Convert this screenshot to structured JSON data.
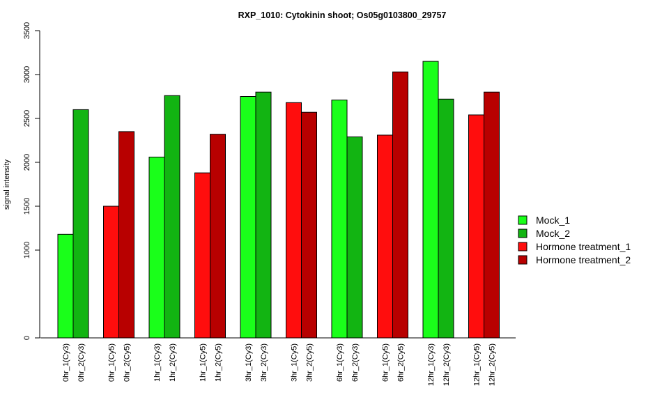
{
  "chart_data": {
    "type": "bar",
    "title": "RXP_1010: Cytokinin shoot; Os05g0103800_29757",
    "xlabel": "",
    "ylabel": "signal intensity",
    "ylim": [
      0,
      3500
    ],
    "yticks": [
      "0",
      "1000",
      "1500",
      "2000",
      "2500",
      "3000",
      "3500"
    ],
    "legend_position": "right",
    "series": [
      {
        "name": "Mock_1",
        "color": "#1aff1a"
      },
      {
        "name": "Mock_2",
        "color": "#12b412"
      },
      {
        "name": "Hormone treatment_1",
        "color": "#ff0d0d"
      },
      {
        "name": "Hormone treatment_2",
        "color": "#b80000"
      }
    ],
    "groups": [
      {
        "bars": [
          {
            "label": "0hr_1(Cy3)",
            "value": 1180,
            "series": 0
          },
          {
            "label": "0hr_2(Cy3)",
            "value": 2600,
            "series": 1
          }
        ]
      },
      {
        "bars": [
          {
            "label": "0hr_1(Cy5)",
            "value": 1500,
            "series": 2
          },
          {
            "label": "0hr_2(Cy5)",
            "value": 2350,
            "series": 3
          }
        ]
      },
      {
        "bars": [
          {
            "label": "1hr_1(Cy3)",
            "value": 2060,
            "series": 0
          },
          {
            "label": "1hr_2(Cy3)",
            "value": 2760,
            "series": 1
          }
        ]
      },
      {
        "bars": [
          {
            "label": "1hr_1(Cy5)",
            "value": 1880,
            "series": 2
          },
          {
            "label": "1hr_2(Cy5)",
            "value": 2320,
            "series": 3
          }
        ]
      },
      {
        "bars": [
          {
            "label": "3hr_1(Cy3)",
            "value": 2750,
            "series": 0
          },
          {
            "label": "3hr_2(Cy3)",
            "value": 2800,
            "series": 1
          }
        ]
      },
      {
        "bars": [
          {
            "label": "3hr_1(Cy5)",
            "value": 2680,
            "series": 2
          },
          {
            "label": "3hr_2(Cy5)",
            "value": 2570,
            "series": 3
          }
        ]
      },
      {
        "bars": [
          {
            "label": "6hr_1(Cy3)",
            "value": 2710,
            "series": 0
          },
          {
            "label": "6hr_2(Cy3)",
            "value": 2290,
            "series": 1
          }
        ]
      },
      {
        "bars": [
          {
            "label": "6hr_1(Cy5)",
            "value": 2310,
            "series": 2
          },
          {
            "label": "6hr_2(Cy5)",
            "value": 3030,
            "series": 3
          }
        ]
      },
      {
        "bars": [
          {
            "label": "12hr_1(Cy3)",
            "value": 3150,
            "series": 0
          },
          {
            "label": "12hr_2(Cy3)",
            "value": 2720,
            "series": 1
          }
        ]
      },
      {
        "bars": [
          {
            "label": "12hr_1(Cy5)",
            "value": 2540,
            "series": 2
          },
          {
            "label": "12hr_2(Cy5)",
            "value": 2800,
            "series": 3
          }
        ]
      }
    ]
  }
}
